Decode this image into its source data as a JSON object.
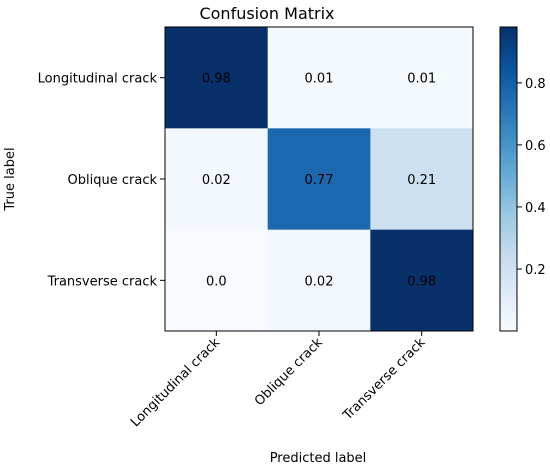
{
  "chart_data": {
    "type": "heatmap",
    "title": "Confusion Matrix",
    "xlabel": "Predicted label",
    "ylabel": "True label",
    "x_categories": [
      "Longitudinal crack",
      "Oblique crack",
      "Transverse crack"
    ],
    "y_categories": [
      "Longitudinal crack",
      "Oblique crack",
      "Transverse crack"
    ],
    "values": [
      [
        0.98,
        0.01,
        0.01
      ],
      [
        0.02,
        0.77,
        0.21
      ],
      [
        0.0,
        0.02,
        0.98
      ]
    ],
    "cell_labels": [
      [
        "0.98",
        "0.01",
        "0.01"
      ],
      [
        "0.02",
        "0.77",
        "0.21"
      ],
      [
        "0.0",
        "0.02",
        "0.98"
      ]
    ],
    "colormap": "Blues",
    "color_range": [
      0.0,
      0.98
    ],
    "colorbar_ticks": [
      0.2,
      0.4,
      0.6,
      0.8
    ],
    "colorbar_tick_labels": [
      "0.2",
      "0.4",
      "0.6",
      "0.8"
    ],
    "colorbar_placement": "right",
    "grid": false
  }
}
